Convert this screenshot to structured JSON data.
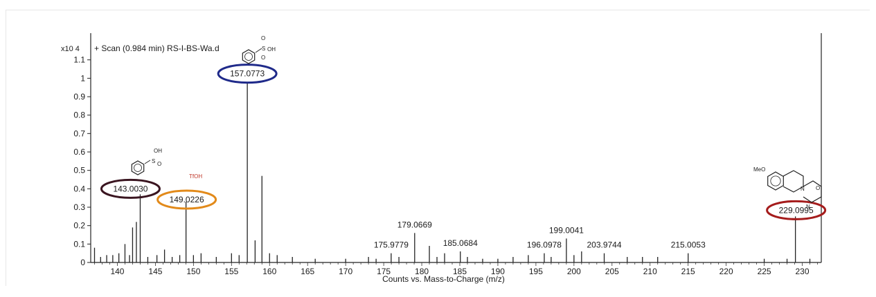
{
  "chart_data": {
    "type": "bar",
    "title": "+ Scan (0.984 min) RS-I-BS-Wa.d",
    "y_multiplier_label": "x10 4",
    "xlabel": "Counts vs. Mass-to-Charge (m/z)",
    "ylabel": "",
    "xlim": [
      136.5,
      232.5
    ],
    "ylim": [
      0,
      1.2
    ],
    "x_ticks": [
      140,
      145,
      150,
      155,
      160,
      165,
      170,
      175,
      180,
      185,
      190,
      195,
      200,
      205,
      210,
      215,
      220,
      225,
      230
    ],
    "y_ticks": [
      0,
      0.1,
      0.2,
      0.3,
      0.4,
      0.5,
      0.6,
      0.7,
      0.8,
      0.9,
      1,
      1.1
    ],
    "peaks": [
      {
        "mz": 137.0,
        "intensity": 0.08
      },
      {
        "mz": 137.8,
        "intensity": 0.03
      },
      {
        "mz": 138.6,
        "intensity": 0.04
      },
      {
        "mz": 139.4,
        "intensity": 0.04
      },
      {
        "mz": 140.2,
        "intensity": 0.05
      },
      {
        "mz": 141.0,
        "intensity": 0.1
      },
      {
        "mz": 141.6,
        "intensity": 0.04
      },
      {
        "mz": 142.0,
        "intensity": 0.19
      },
      {
        "mz": 142.5,
        "intensity": 0.22
      },
      {
        "mz": 143.003,
        "intensity": 0.37
      },
      {
        "mz": 144.0,
        "intensity": 0.03
      },
      {
        "mz": 145.2,
        "intensity": 0.04
      },
      {
        "mz": 146.2,
        "intensity": 0.07
      },
      {
        "mz": 147.2,
        "intensity": 0.03
      },
      {
        "mz": 148.2,
        "intensity": 0.04
      },
      {
        "mz": 149.0226,
        "intensity": 0.33
      },
      {
        "mz": 150.0,
        "intensity": 0.04
      },
      {
        "mz": 151.0,
        "intensity": 0.05
      },
      {
        "mz": 153.0,
        "intensity": 0.03
      },
      {
        "mz": 155.0,
        "intensity": 0.05
      },
      {
        "mz": 156.0,
        "intensity": 0.04
      },
      {
        "mz": 157.0773,
        "intensity": 0.98
      },
      {
        "mz": 158.1,
        "intensity": 0.12
      },
      {
        "mz": 159.0,
        "intensity": 0.47
      },
      {
        "mz": 160.0,
        "intensity": 0.05
      },
      {
        "mz": 161.0,
        "intensity": 0.04
      },
      {
        "mz": 163.0,
        "intensity": 0.03
      },
      {
        "mz": 166.0,
        "intensity": 0.02
      },
      {
        "mz": 170.0,
        "intensity": 0.02
      },
      {
        "mz": 173.0,
        "intensity": 0.03
      },
      {
        "mz": 174.0,
        "intensity": 0.02
      },
      {
        "mz": 175.9779,
        "intensity": 0.05
      },
      {
        "mz": 177.0,
        "intensity": 0.03
      },
      {
        "mz": 179.0669,
        "intensity": 0.16
      },
      {
        "mz": 181.0,
        "intensity": 0.09
      },
      {
        "mz": 182.0,
        "intensity": 0.03
      },
      {
        "mz": 183.0,
        "intensity": 0.05
      },
      {
        "mz": 185.0684,
        "intensity": 0.06
      },
      {
        "mz": 186.0,
        "intensity": 0.03
      },
      {
        "mz": 188.0,
        "intensity": 0.02
      },
      {
        "mz": 190.0,
        "intensity": 0.02
      },
      {
        "mz": 192.0,
        "intensity": 0.03
      },
      {
        "mz": 194.0,
        "intensity": 0.04
      },
      {
        "mz": 196.0978,
        "intensity": 0.05
      },
      {
        "mz": 197.0,
        "intensity": 0.03
      },
      {
        "mz": 199.0041,
        "intensity": 0.13
      },
      {
        "mz": 200.0,
        "intensity": 0.04
      },
      {
        "mz": 201.0,
        "intensity": 0.06
      },
      {
        "mz": 203.9744,
        "intensity": 0.05
      },
      {
        "mz": 207.0,
        "intensity": 0.03
      },
      {
        "mz": 209.0,
        "intensity": 0.03
      },
      {
        "mz": 211.0,
        "intensity": 0.03
      },
      {
        "mz": 215.0053,
        "intensity": 0.05
      },
      {
        "mz": 225.0,
        "intensity": 0.02
      },
      {
        "mz": 228.0,
        "intensity": 0.02
      },
      {
        "mz": 229.0995,
        "intensity": 0.25
      },
      {
        "mz": 231.0,
        "intensity": 0.02
      }
    ],
    "annotations": [
      {
        "label": "157.0773",
        "mz": 157.0773,
        "intensity": 0.98,
        "circled": true,
        "circle_color": "#1f2a8a"
      },
      {
        "label": "143.0030",
        "mz": 143.003,
        "intensity": 0.37,
        "circled": true,
        "circle_color": "#3a1520"
      },
      {
        "label": "149.0226",
        "mz": 149.0226,
        "intensity": 0.33,
        "circled": true,
        "circle_color": "#e28a1a"
      },
      {
        "label": "229.0995",
        "mz": 229.0995,
        "intensity": 0.25,
        "circled": true,
        "circle_color": "#a51c1c"
      },
      {
        "label": "179.0669",
        "mz": 179.0669,
        "intensity": 0.16,
        "circled": false
      },
      {
        "label": "175.9779",
        "mz": 175.9779,
        "intensity": 0.05,
        "circled": false
      },
      {
        "label": "185.0684",
        "mz": 185.0684,
        "intensity": 0.06,
        "circled": false
      },
      {
        "label": "199.0041",
        "mz": 199.0041,
        "intensity": 0.13,
        "circled": false
      },
      {
        "label": "196.0978",
        "mz": 196.0978,
        "intensity": 0.05,
        "circled": false
      },
      {
        "label": "203.9744",
        "mz": 203.9744,
        "intensity": 0.05,
        "circled": false
      },
      {
        "label": "215.0053",
        "mz": 215.0053,
        "intensity": 0.05,
        "circled": false
      }
    ],
    "structures": [
      {
        "name": "benzenesulfonic-acid",
        "labels": [
          "O",
          "S",
          "O",
          "OH"
        ]
      },
      {
        "name": "benzenesulfinic-acid",
        "labels": [
          "OH",
          "S",
          "O"
        ]
      },
      {
        "name": "triflic-acid",
        "labels": [
          "TfOH"
        ],
        "label_color": "#c0392b"
      },
      {
        "name": "methoxy-pyrazino-isoquinolinone",
        "labels": [
          "MeO",
          "N",
          "N",
          "O"
        ]
      }
    ]
  }
}
